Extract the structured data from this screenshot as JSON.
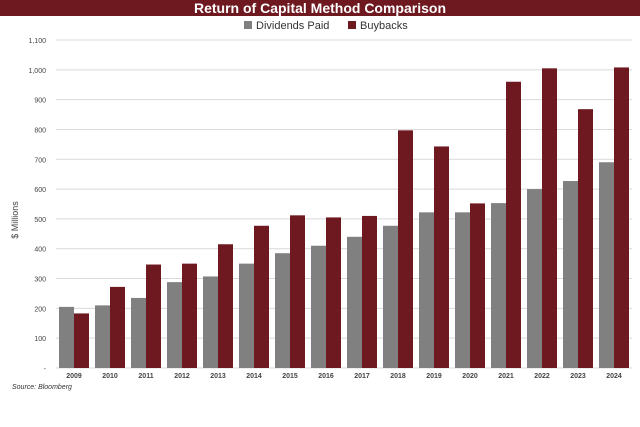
{
  "chart_data": {
    "type": "bar",
    "title": "Return of Capital Method Comparison",
    "ylabel": "$ Millions",
    "xlabel": "",
    "categories": [
      "2009",
      "2010",
      "2011",
      "2012",
      "2013",
      "2014",
      "2015",
      "2016",
      "2017",
      "2018",
      "2019",
      "2020",
      "2021",
      "2022",
      "2023",
      "2024"
    ],
    "series": [
      {
        "name": "Dividends Paid",
        "color": "#808080",
        "values": [
          205,
          210,
          235,
          288,
          307,
          350,
          385,
          410,
          440,
          477,
          522,
          522,
          553,
          600,
          627,
          690
        ]
      },
      {
        "name": "Buybacks",
        "color": "#6e1820",
        "values": [
          183,
          272,
          347,
          350,
          415,
          477,
          512,
          505,
          510,
          797,
          743,
          552,
          960,
          1005,
          868,
          1008
        ]
      }
    ],
    "ylim": [
      0,
      1100
    ],
    "yticks": [
      "-",
      "100",
      "200",
      "300",
      "400",
      "500",
      "600",
      "700",
      "800",
      "900",
      "1,000",
      "1,100"
    ],
    "grid": true,
    "legend_position": "top-center",
    "source": "Source: Bloomberg"
  }
}
